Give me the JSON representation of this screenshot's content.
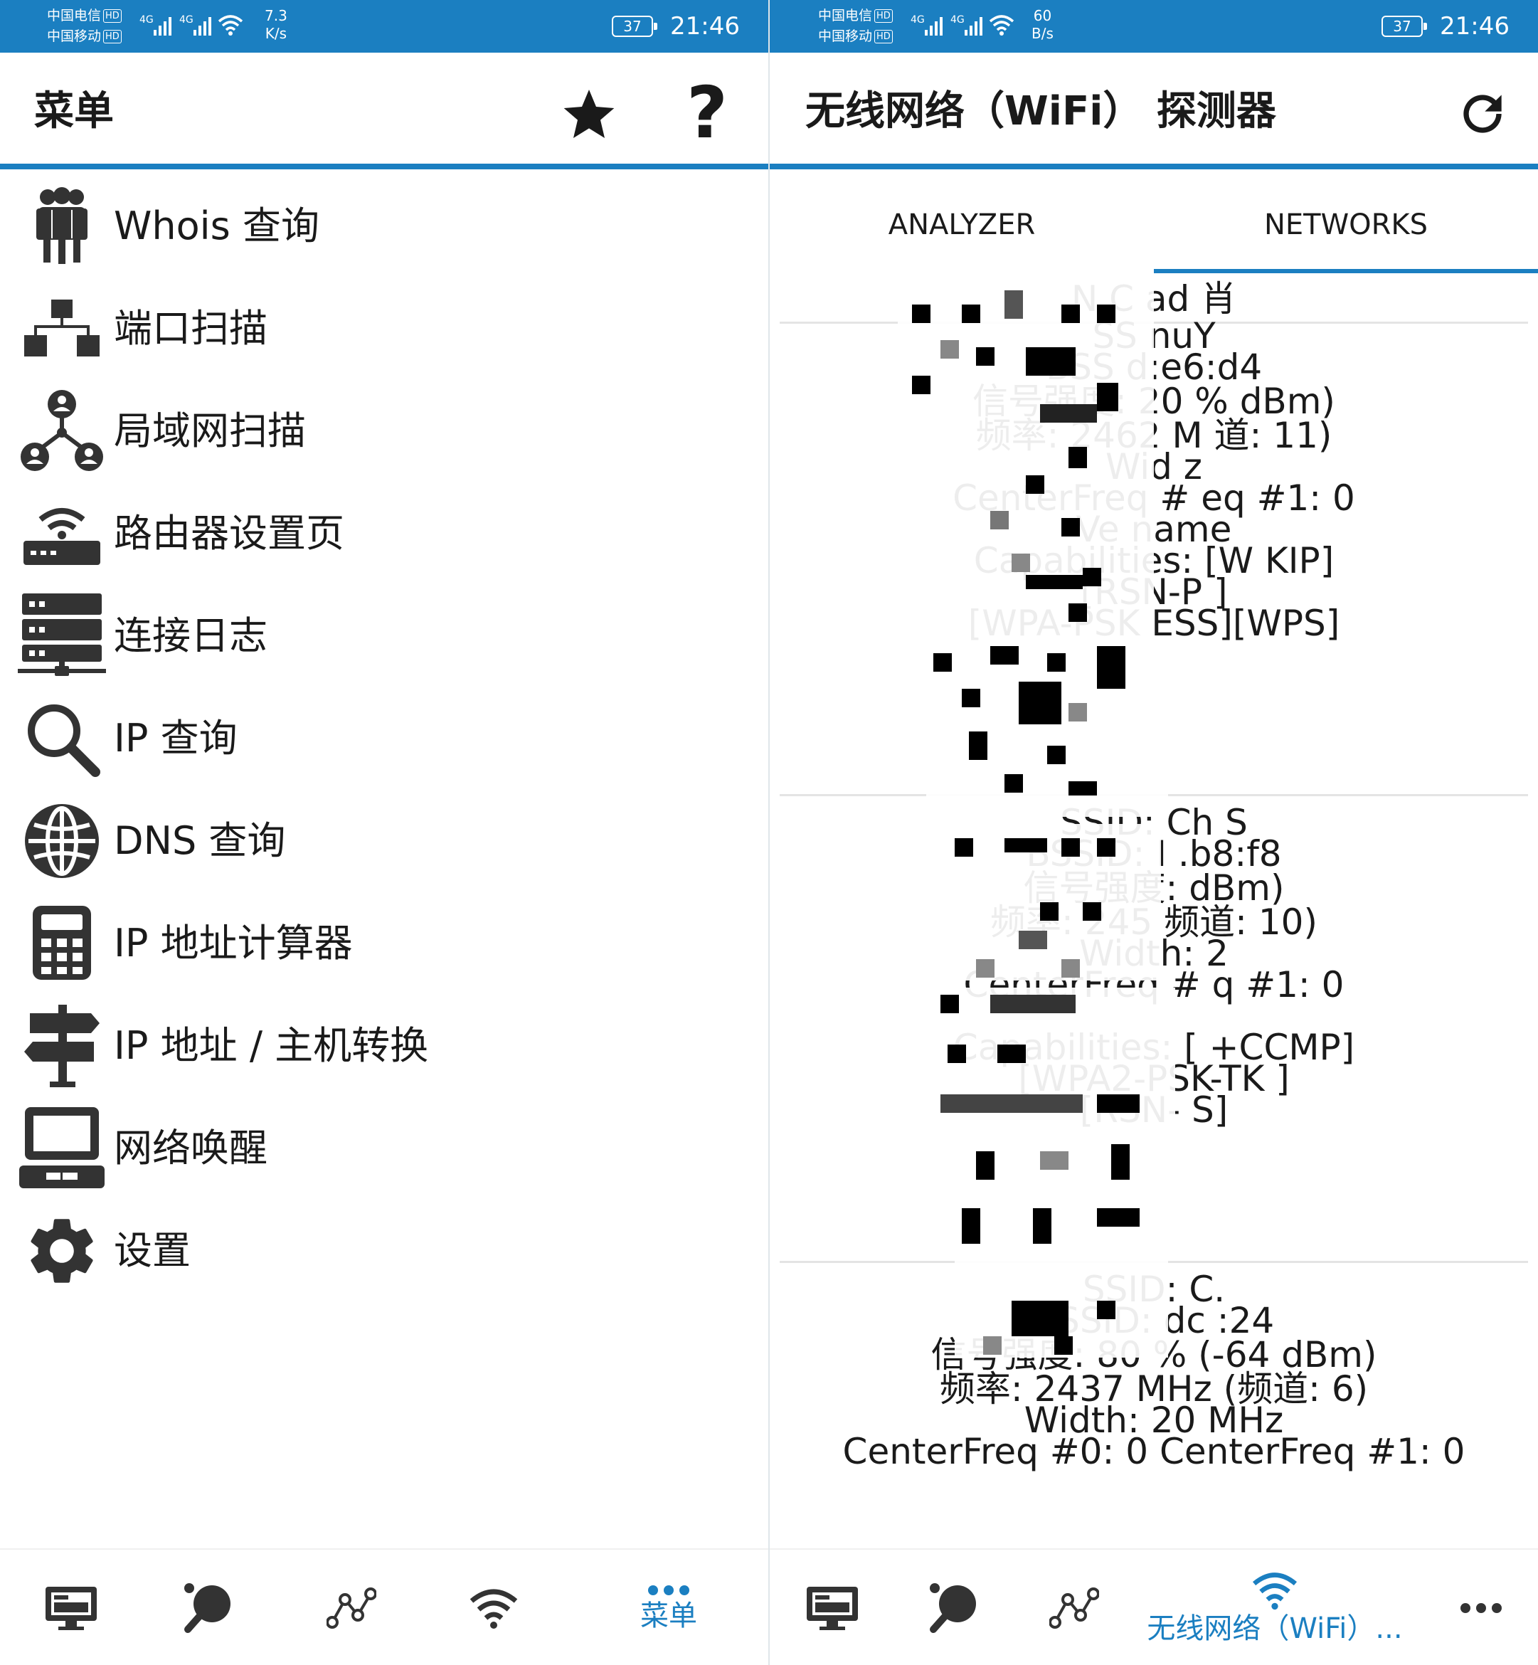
{
  "status_left": {
    "carrier1": "中国电信",
    "carrier2": "中国移动",
    "hd": "HD",
    "net": "4G",
    "speed_value": "7.3",
    "speed_unit": "K/s",
    "battery": "37",
    "time": "21:46"
  },
  "status_right": {
    "carrier1": "中国电信",
    "carrier2": "中国移动",
    "hd": "HD",
    "net": "4G",
    "speed_value": "60",
    "speed_unit": "B/s",
    "battery": "37",
    "time": "21:46"
  },
  "menu_screen": {
    "title": "菜单",
    "items": [
      {
        "label": "Whois 查询",
        "icon": "people-group-icon"
      },
      {
        "label": "端口扫描",
        "icon": "network-tree-icon"
      },
      {
        "label": "局域网扫描",
        "icon": "lan-users-icon"
      },
      {
        "label": "路由器设置页",
        "icon": "router-icon"
      },
      {
        "label": "连接日志",
        "icon": "server-log-icon"
      },
      {
        "label": "IP 查询",
        "icon": "search-icon"
      },
      {
        "label": "DNS 查询",
        "icon": "globe-icon"
      },
      {
        "label": "IP 地址计算器",
        "icon": "calculator-icon"
      },
      {
        "label": "IP 地址 / 主机转换",
        "icon": "signpost-icon"
      },
      {
        "label": "网络唤醒",
        "icon": "computer-icon"
      },
      {
        "label": "设置",
        "icon": "gear-icon"
      }
    ],
    "bottom_nav": {
      "active_label": "菜单"
    }
  },
  "wifi_screen": {
    "title": "无线网络（WiFi） 探测器",
    "tabs": {
      "analyzer": "ANALYZER",
      "networks": "NETWORKS"
    },
    "networks": [
      {
        "lines": [
          "N     C    ad     肖",
          "SS              nuY",
          "BSS               d:e6:d4",
          "信号强度:   20 %        dBm)",
          "频率:   2462 M          道: 11)",
          "Wid               z",
          "CenterFreq #          eq #1: 0",
          "Ve         name",
          "Capabilities: [W               KIP]",
          "[RSN-P               ]",
          "[WPA-PSK               ESS][WPS]"
        ]
      },
      {
        "lines": [
          "SSID: Ch              S",
          "BSSID: I             .b8:f8",
          "信号强度:           dBm)",
          "频率:   245       频道: 10)",
          "Width: 2",
          "CenterFreq #           q #1: 0",
          "",
          "Capabilities: [           +CCMP]",
          "[WPA2-PSK-TK         ]",
          "[RSN-              S]"
        ]
      },
      {
        "lines": [
          "SSID: C.",
          "BSSID: dc             :24",
          "信号强度:   80 % (-64 dBm)",
          "频率:   2437 MHz (频道: 6)",
          "Width: 20 MHz",
          "CenterFreq #0: 0 CenterFreq #1: 0"
        ]
      }
    ],
    "bottom_nav": {
      "active_label": "无线网络（WiFi）...",
      "more_label": "..."
    }
  },
  "colors": {
    "accent": "#1b7fc1",
    "text": "#1a1a1a",
    "icon": "#333333"
  }
}
